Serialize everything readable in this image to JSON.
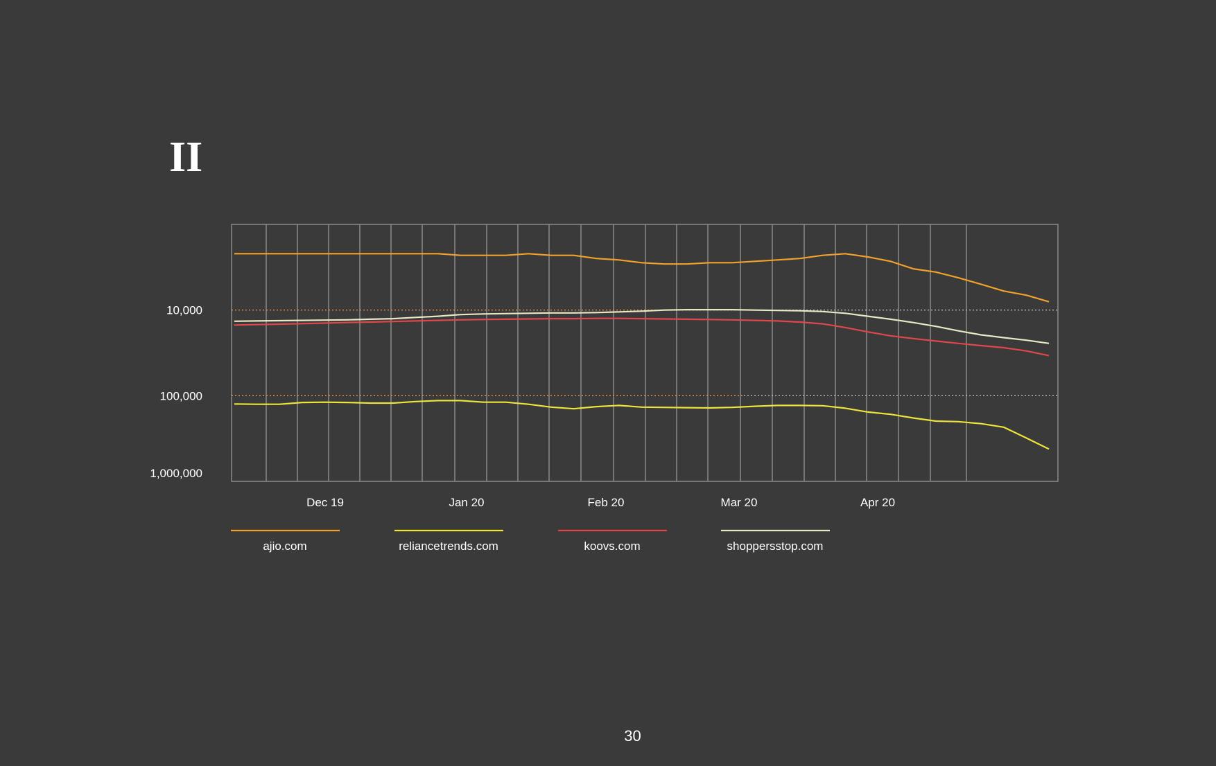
{
  "slide": {
    "section_numeral": "II",
    "page_number": "30"
  },
  "chart_data": {
    "type": "line",
    "y_scale": "log",
    "y_inverted": true,
    "ylim": [
      1000,
      1000000
    ],
    "y_ticks": [
      10000,
      100000,
      1000000
    ],
    "y_tick_labels": [
      "10,000",
      "100,000",
      "1,000,000"
    ],
    "x_tick_labels": [
      "Dec 19",
      "Jan 20",
      "Feb 20",
      "Mar 20",
      "Apr 20"
    ],
    "grid": true,
    "legend_position": "bottom",
    "series": [
      {
        "name": "ajio.com",
        "color": "#f2a12a",
        "values": [
          2200,
          2200,
          2200,
          2200,
          2200,
          2200,
          2200,
          2200,
          2200,
          2200,
          2300,
          2300,
          2300,
          2200,
          2300,
          2300,
          2500,
          2600,
          2800,
          2900,
          2900,
          2800,
          2800,
          2700,
          2600,
          2500,
          2300,
          2200,
          2400,
          2700,
          3300,
          3600,
          4200,
          5000,
          6000,
          6700,
          8000
        ]
      },
      {
        "name": "reliancetrends.com",
        "color": "#eee43a",
        "values": [
          125000,
          126000,
          126000,
          120000,
          119000,
          120000,
          122000,
          122000,
          117000,
          114000,
          114000,
          119000,
          119000,
          126000,
          136000,
          142000,
          134000,
          130000,
          136000,
          137000,
          138000,
          139000,
          137000,
          133000,
          130000,
          130000,
          131000,
          140000,
          155000,
          165000,
          182000,
          198000,
          201000,
          212000,
          233000,
          312000,
          420000
        ]
      },
      {
        "name": "koovs.com",
        "color": "#e0474c",
        "values": [
          15000,
          14800,
          14600,
          14400,
          14200,
          14000,
          13800,
          13600,
          13400,
          13200,
          13000,
          12900,
          12800,
          12700,
          12600,
          12600,
          12500,
          12500,
          12600,
          12700,
          12800,
          12900,
          13000,
          13200,
          13400,
          13800,
          14500,
          16000,
          18000,
          20000,
          21500,
          23000,
          24500,
          26000,
          27500,
          30000,
          34000
        ]
      },
      {
        "name": "shoppersstop.com",
        "color": "#e8e8c4",
        "values": [
          13500,
          13400,
          13300,
          13200,
          13100,
          13000,
          12800,
          12600,
          12200,
          11800,
          11300,
          11100,
          11000,
          10900,
          10800,
          10800,
          10700,
          10500,
          10300,
          10000,
          9900,
          9900,
          9900,
          10000,
          10100,
          10200,
          10400,
          10900,
          11800,
          12800,
          14000,
          15500,
          17500,
          19500,
          21000,
          22500,
          24500
        ]
      }
    ]
  }
}
